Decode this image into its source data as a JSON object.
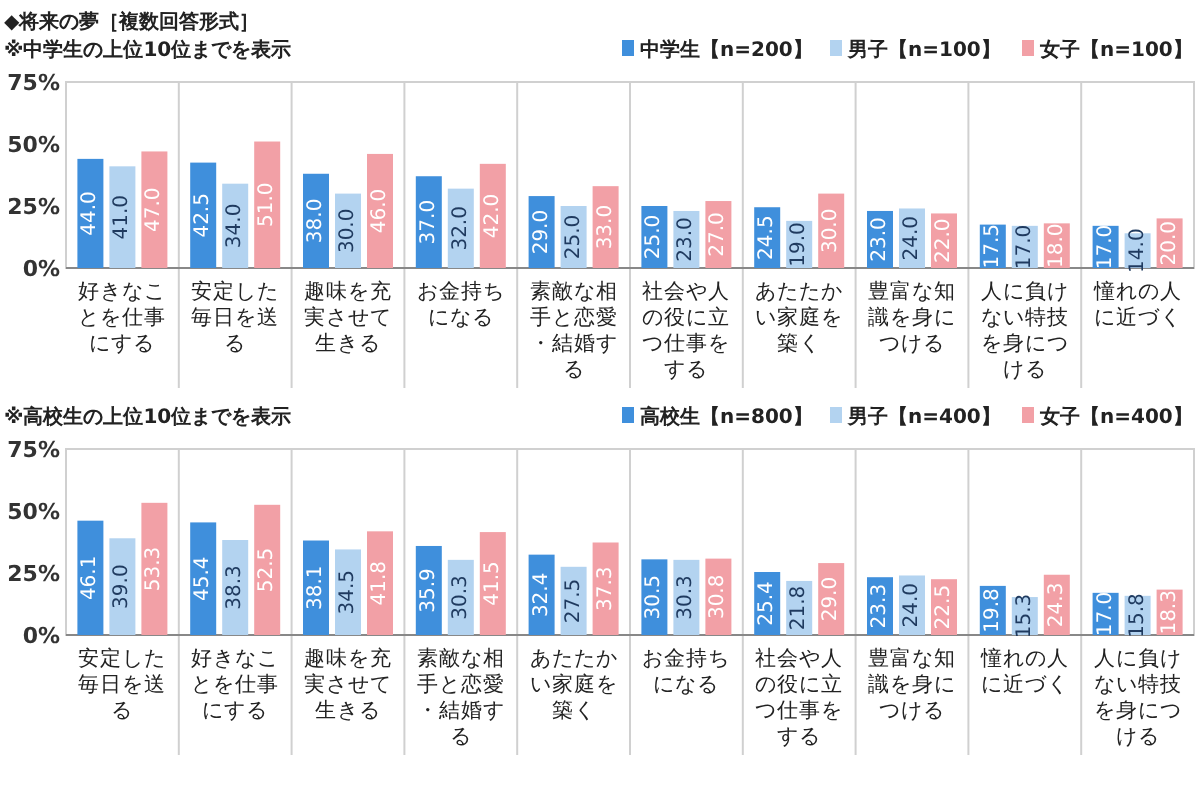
{
  "chart_data": [
    {
      "type": "bar",
      "title": "◆将来の夢［複数回答形式］",
      "subtitle": "※中学生の上位10位までを表示",
      "categories": [
        "好きなことを仕事にする",
        "安定した毎日を送る",
        "趣味を充実させて生きる",
        "お金持ちになる",
        "素敵な相手と恋愛・結婚する",
        "社会や人の役に立つ仕事をする",
        "あたたかい家庭を築く",
        "豊富な知識を身につける",
        "人に負けない特技を身につける",
        "憧れの人に近づく"
      ],
      "series": [
        {
          "name": "中学生【n=200】",
          "color": "#3f8fdc",
          "values": [
            44.0,
            42.5,
            38.0,
            37.0,
            29.0,
            25.0,
            24.5,
            23.0,
            17.5,
            17.0
          ],
          "value_labels": [
            "44.0",
            "42.5",
            "38.0",
            "37.0",
            "29.0",
            "25.0",
            "24.5",
            "23.0",
            "17.5",
            "17.0"
          ]
        },
        {
          "name": "男子【n=100】",
          "color": "#b3d3f0",
          "values": [
            41.0,
            34.0,
            30.0,
            32.0,
            25.0,
            23.0,
            19.0,
            24.0,
            17.0,
            14.0
          ],
          "value_labels": [
            "41.0",
            "34.0",
            "30.0",
            "32.0",
            "25.0",
            "23.0",
            "19.0",
            "24.0",
            "17.0",
            "14.0"
          ]
        },
        {
          "name": "女子【n=100】",
          "color": "#f2a0a6",
          "values": [
            47.0,
            51.0,
            46.0,
            42.0,
            33.0,
            27.0,
            30.0,
            22.0,
            18.0,
            20.0
          ],
          "value_labels": [
            "47.0",
            "51.0",
            "46.0",
            "42.0",
            "33.0",
            "27.0",
            "30.0",
            "22.0",
            "18.0",
            "20.0"
          ]
        }
      ],
      "ylim": [
        0,
        75
      ],
      "yticks": [
        {
          "value": 0,
          "label": "0%"
        },
        {
          "value": 25,
          "label": "25%"
        },
        {
          "value": 50,
          "label": "50%"
        },
        {
          "value": 75,
          "label": "75%"
        }
      ],
      "grid": "x",
      "legend": "top right"
    },
    {
      "type": "bar",
      "subtitle": "※高校生の上位10位までを表示",
      "categories": [
        "安定した毎日を送る",
        "好きなことを仕事にする",
        "趣味を充実させて生きる",
        "素敵な相手と恋愛・結婚する",
        "あたたかい家庭を築く",
        "お金持ちになる",
        "社会や人の役に立つ仕事をする",
        "豊富な知識を身につける",
        "憧れの人に近づく",
        "人に負けない特技を身につける"
      ],
      "series": [
        {
          "name": "高校生【n=800】",
          "color": "#3f8fdc",
          "values": [
            46.1,
            45.4,
            38.1,
            35.9,
            32.4,
            30.5,
            25.4,
            23.3,
            19.8,
            17.0
          ],
          "value_labels": [
            "46.1",
            "45.4",
            "38.1",
            "35.9",
            "32.4",
            "30.5",
            "25.4",
            "23.3",
            "19.8",
            "17.0"
          ]
        },
        {
          "name": "男子【n=400】",
          "color": "#b3d3f0",
          "values": [
            39.0,
            38.3,
            34.5,
            30.3,
            27.5,
            30.3,
            21.8,
            24.0,
            15.3,
            15.8
          ],
          "value_labels": [
            "39.0",
            "38.3",
            "34.5",
            "30.3",
            "27.5",
            "30.3",
            "21.8",
            "24.0",
            "15.3",
            "15.8"
          ]
        },
        {
          "name": "女子【n=400】",
          "color": "#f2a0a6",
          "values": [
            53.3,
            52.5,
            41.8,
            41.5,
            37.3,
            30.8,
            29.0,
            22.5,
            24.3,
            18.3
          ],
          "value_labels": [
            "53.3",
            "52.5",
            "41.8",
            "41.5",
            "37.3",
            "30.8",
            "29.0",
            "22.5",
            "24.3",
            "18.3"
          ]
        }
      ],
      "ylim": [
        0,
        75
      ],
      "yticks": [
        {
          "value": 0,
          "label": "0%"
        },
        {
          "value": 25,
          "label": "25%"
        },
        {
          "value": 50,
          "label": "50%"
        },
        {
          "value": 75,
          "label": "75%"
        }
      ],
      "grid": "x",
      "legend": "top right"
    }
  ]
}
